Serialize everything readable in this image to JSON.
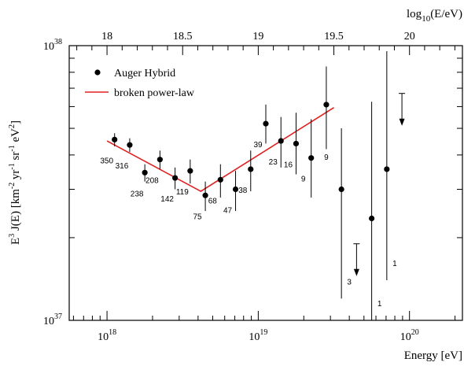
{
  "chart_data": {
    "type": "scatter",
    "xlabel": "Energy [eV]",
    "x2label": "log10(E/eV)",
    "ylabel": "E^3 J(E) [km^-2 yr^-1 sr^-1 eV^2]",
    "xscale": "log",
    "yscale": "log",
    "xlim_log10": [
      17.75,
      20.35
    ],
    "ylim": [
      1e+37,
      1e+38
    ],
    "x_ticks_bottom": [
      "10^18",
      "10^19",
      "10^20"
    ],
    "x_ticks_top": [
      "18",
      "18.5",
      "19",
      "19.5",
      "20"
    ],
    "y_ticks": [
      "10^37",
      "10^38"
    ],
    "legend": {
      "position": "top-left",
      "entries": [
        {
          "label": "Auger Hybrid",
          "marker": "dot",
          "color": "#000000"
        },
        {
          "label": "broken power-law",
          "marker": "line",
          "color": "#e02020"
        }
      ]
    },
    "series": [
      {
        "name": "Auger Hybrid",
        "marker": "dot",
        "points": [
          {
            "log10E": 18.05,
            "y": 4.55e+37,
            "err_low": 2.5e+36,
            "err_high": 2.5e+36,
            "count": "350"
          },
          {
            "log10E": 18.15,
            "y": 4.35e+37,
            "err_low": 2.5e+36,
            "err_high": 2.5e+36,
            "count": "316"
          },
          {
            "log10E": 18.25,
            "y": 3.45e+37,
            "err_low": 2.5e+36,
            "err_high": 2.5e+36,
            "count": "238"
          },
          {
            "log10E": 18.35,
            "y": 3.85e+37,
            "err_low": 3e+36,
            "err_high": 3e+36,
            "count": "208"
          },
          {
            "log10E": 18.45,
            "y": 3.3e+37,
            "err_low": 3e+36,
            "err_high": 3e+36,
            "count": "142"
          },
          {
            "log10E": 18.55,
            "y": 3.5e+37,
            "err_low": 3.5e+36,
            "err_high": 3.5e+36,
            "count": "119"
          },
          {
            "log10E": 18.65,
            "y": 2.85e+37,
            "err_low": 3.5e+36,
            "err_high": 3.5e+36,
            "count": "75"
          },
          {
            "log10E": 18.75,
            "y": 3.25e+37,
            "err_low": 4.5e+36,
            "err_high": 4.5e+36,
            "count": "68"
          },
          {
            "log10E": 18.85,
            "y": 3e+37,
            "err_low": 5e+36,
            "err_high": 5e+36,
            "count": "47"
          },
          {
            "log10E": 18.95,
            "y": 3.55e+37,
            "err_low": 6e+36,
            "err_high": 6e+36,
            "count": "38"
          },
          {
            "log10E": 19.05,
            "y": 5.2e+37,
            "err_low": 8e+36,
            "err_high": 9e+36,
            "count": "39"
          },
          {
            "log10E": 19.15,
            "y": 4.5e+37,
            "err_low": 9e+36,
            "err_high": 1e+37,
            "count": "23"
          },
          {
            "log10E": 19.25,
            "y": 4.4e+37,
            "err_low": 1e+37,
            "err_high": 1.3e+37,
            "count": "16"
          },
          {
            "log10E": 19.35,
            "y": 3.9e+37,
            "err_low": 1.1e+37,
            "err_high": 1.5e+37,
            "count": "9"
          },
          {
            "log10E": 19.45,
            "y": 6.1e+37,
            "err_low": 1.9e+37,
            "err_high": 2.3e+37,
            "count": "9"
          },
          {
            "log10E": 19.55,
            "y": 3e+37,
            "err_low": 1.8e+37,
            "err_high": 2e+37,
            "count": "3"
          },
          {
            "log10E": 19.75,
            "y": 2.35e+37,
            "err_low": 1.35e+37,
            "err_high": 3.9e+37,
            "count": "1"
          },
          {
            "log10E": 19.85,
            "y": 3.55e+37,
            "err_low": 2.15e+37,
            "err_high": 6e+37,
            "count": "1"
          }
        ]
      },
      {
        "name": "upper limits",
        "marker": "arrow-down",
        "points": [
          {
            "log10E": 19.65,
            "y": 1.9e+37
          },
          {
            "log10E": 19.95,
            "y": 6.7e+37
          }
        ]
      },
      {
        "name": "broken power-law",
        "marker": "line",
        "color": "#e02020",
        "points": [
          {
            "log10E": 18.0,
            "y": 4.5e+37
          },
          {
            "log10E": 18.62,
            "y": 2.95e+37
          },
          {
            "log10E": 19.5,
            "y": 5.95e+37
          }
        ]
      }
    ]
  }
}
